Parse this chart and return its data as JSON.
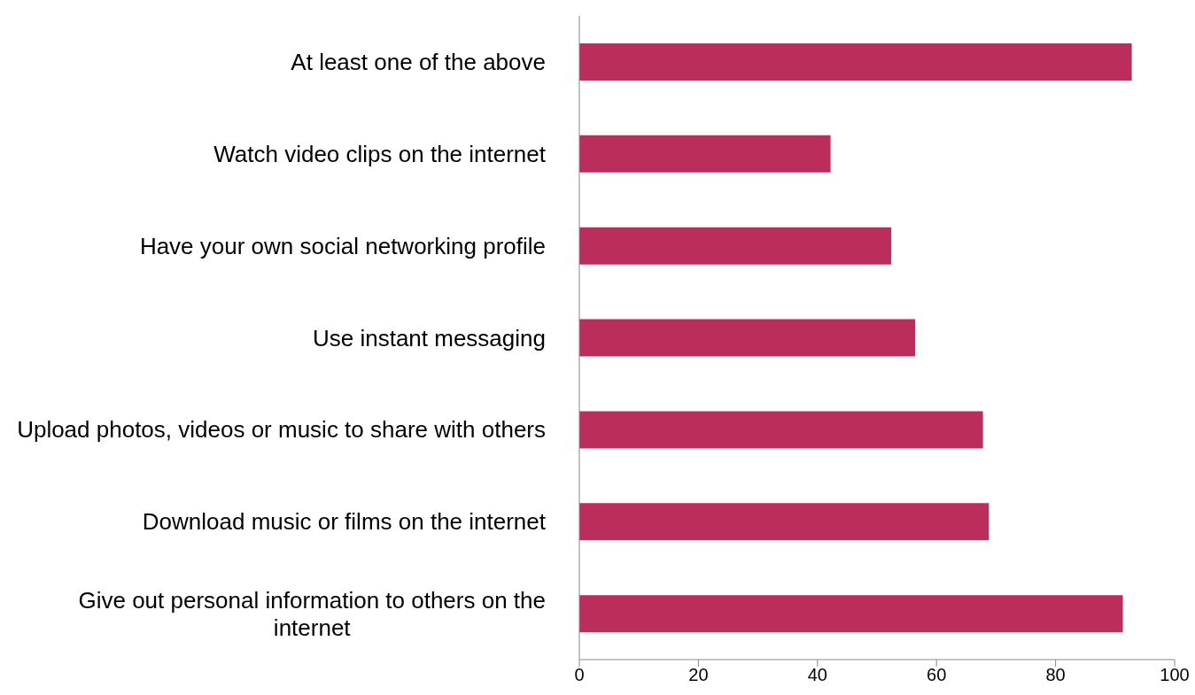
{
  "chart_data": {
    "type": "bar",
    "orientation": "horizontal",
    "categories": [
      "At least one of the above",
      "Watch video clips on the internet",
      "Have your own social networking profile",
      "Use instant messaging",
      "Upload photos, videos or music to share with others",
      "Download music or films on the internet",
      "Give out personal information to others on the internet"
    ],
    "values": [
      92.8,
      42.2,
      52.4,
      56.4,
      67.8,
      68.8,
      91.3
    ],
    "color": "#bb2d5a",
    "xlim": [
      0,
      100
    ],
    "xticks": [
      0,
      20,
      40,
      60,
      80,
      100
    ],
    "grid": false,
    "legend": false
  }
}
